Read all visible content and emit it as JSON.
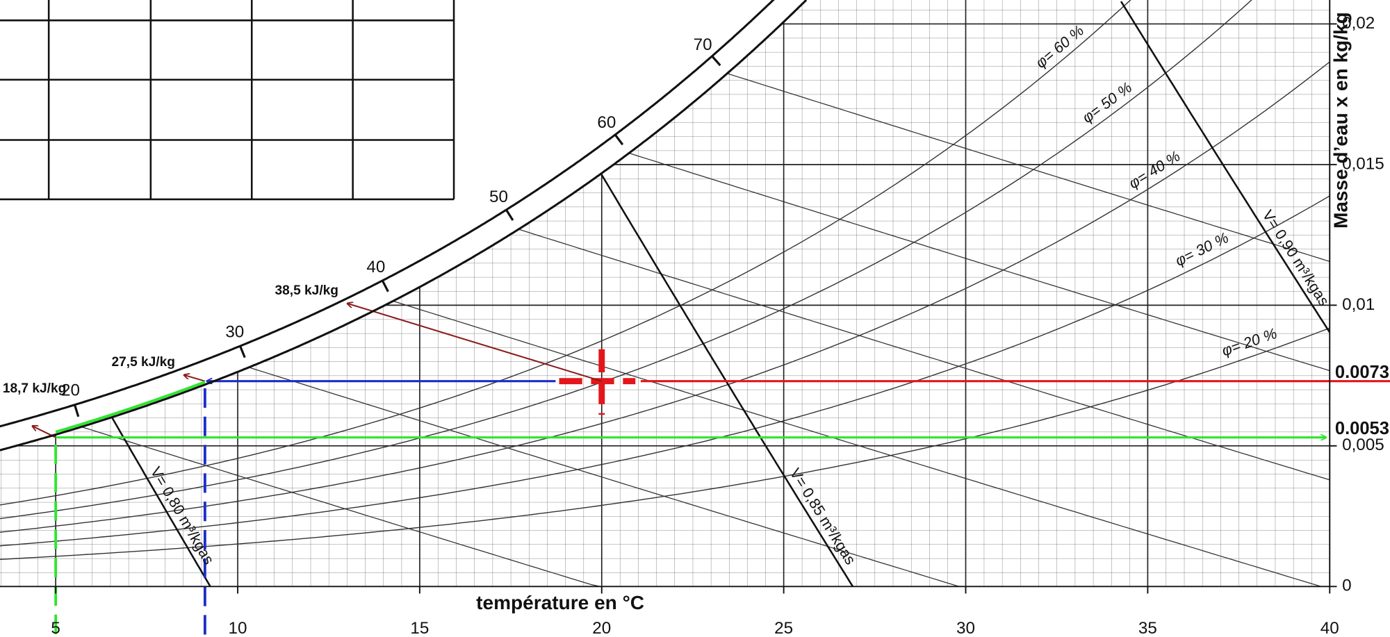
{
  "chart_data": {
    "type": "psychrometric",
    "x_label": "température  en °C",
    "y_label": "Masse d’eau x en kg/kg",
    "xlim": [
      3.47,
      40
    ],
    "ylim": [
      0,
      0.02085
    ],
    "xticks": [
      5,
      10,
      15,
      20,
      25,
      30,
      35,
      40
    ],
    "yticks": [
      0,
      {
        "value": 0.005,
        "label": "0,005"
      },
      {
        "value": 0.01,
        "label": "0,01"
      },
      {
        "value": 0.015,
        "label": "0,015"
      },
      {
        "value": 0.02,
        "label": "0,02"
      }
    ],
    "grid": true,
    "enthalpy_ticks": [
      20,
      30,
      40,
      50,
      60,
      70
    ],
    "rh_curves": [
      {
        "value": 20,
        "label": "φ= 20  %"
      },
      {
        "value": 30,
        "label": "φ= 30  %"
      },
      {
        "value": 40,
        "label": "φ= 40  %"
      },
      {
        "value": 50,
        "label": "φ= 50  %"
      },
      {
        "value": 60,
        "label": "φ= 60  %"
      }
    ],
    "volume_lines": [
      {
        "value": 0.8,
        "label": "V= 0,80 m³/kgas"
      },
      {
        "value": 0.85,
        "label": "V= 0,85 m³/kgas"
      },
      {
        "value": 0.9,
        "label": "V= 0,90 m³/kgas"
      }
    ],
    "states": [
      {
        "t": 20,
        "x": 0.0073,
        "x_label": "0.0073",
        "color": "#e3161b",
        "h": 38.5,
        "h_label": "38,5 kJ/kg"
      },
      {
        "t": 9.1,
        "x": 0.0073,
        "color": "#1a2ec8",
        "h": 27.5,
        "h_label": "27,5 kJ/kg"
      },
      {
        "t": 5,
        "x": 0.0053,
        "x_label": "0.0053",
        "color": "#2ee62e",
        "h": 18.7,
        "h_label": "18,7 kJ/kg"
      }
    ],
    "enthalpy_arrow_color": "#8b1a1a"
  }
}
